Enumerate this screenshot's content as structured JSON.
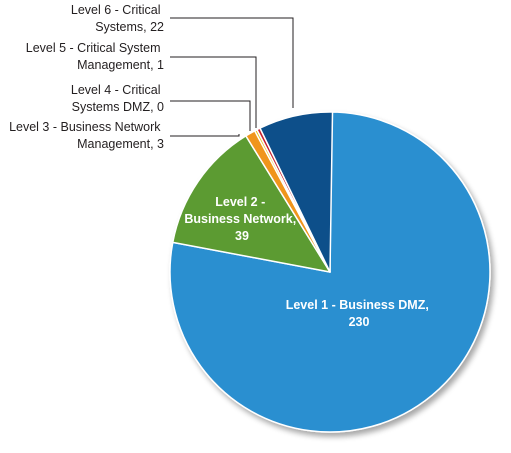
{
  "chart_data": {
    "type": "pie",
    "title": "",
    "slices": [
      {
        "label": "Level 1 - Business DMZ,",
        "value": 230,
        "value_text": "230",
        "color": "#2a8fd0",
        "label_position": "inside"
      },
      {
        "label": "Level 2 - Business Network,",
        "value": 39,
        "value_text": "39",
        "color": "#5b9b32",
        "label_position": "inside"
      },
      {
        "label": "Level 3 - Business Network Management,",
        "value": 3,
        "value_text": "3",
        "color": "#f0951c",
        "label_position": "outside"
      },
      {
        "label": "Level 4 - Critical Systems DMZ,",
        "value": 0,
        "value_text": "0",
        "color": "#e8c51a",
        "label_position": "outside"
      },
      {
        "label": "Level 5 - Critical System Management,",
        "value": 1,
        "value_text": "1",
        "color": "#c8202e",
        "label_position": "outside"
      },
      {
        "label": "Level 6 - Critical Systems,",
        "value": 22,
        "value_text": "22",
        "color": "#0b4f8a",
        "label_position": "outside"
      }
    ],
    "start_angle": "12 o'clock",
    "direction": "clockwise (Level 1 first)"
  },
  "labels": {
    "l1_line1": "Level 1 - Business DMZ,",
    "l1_line2": "230",
    "l2_line1": "Level 2 -",
    "l2_line2": "Business Network,",
    "l2_line3": "39",
    "l3_line1": "Level 3 - Business Network",
    "l3_line2": "Management, 3",
    "l4_line1": "Level 4 - Critical",
    "l4_line2": "Systems DMZ, 0",
    "l5_line1": "Level 5 - Critical System",
    "l5_line2": "Management, 1",
    "l6_line1": "Level 6 - Critical",
    "l6_line2": "Systems, 22"
  }
}
